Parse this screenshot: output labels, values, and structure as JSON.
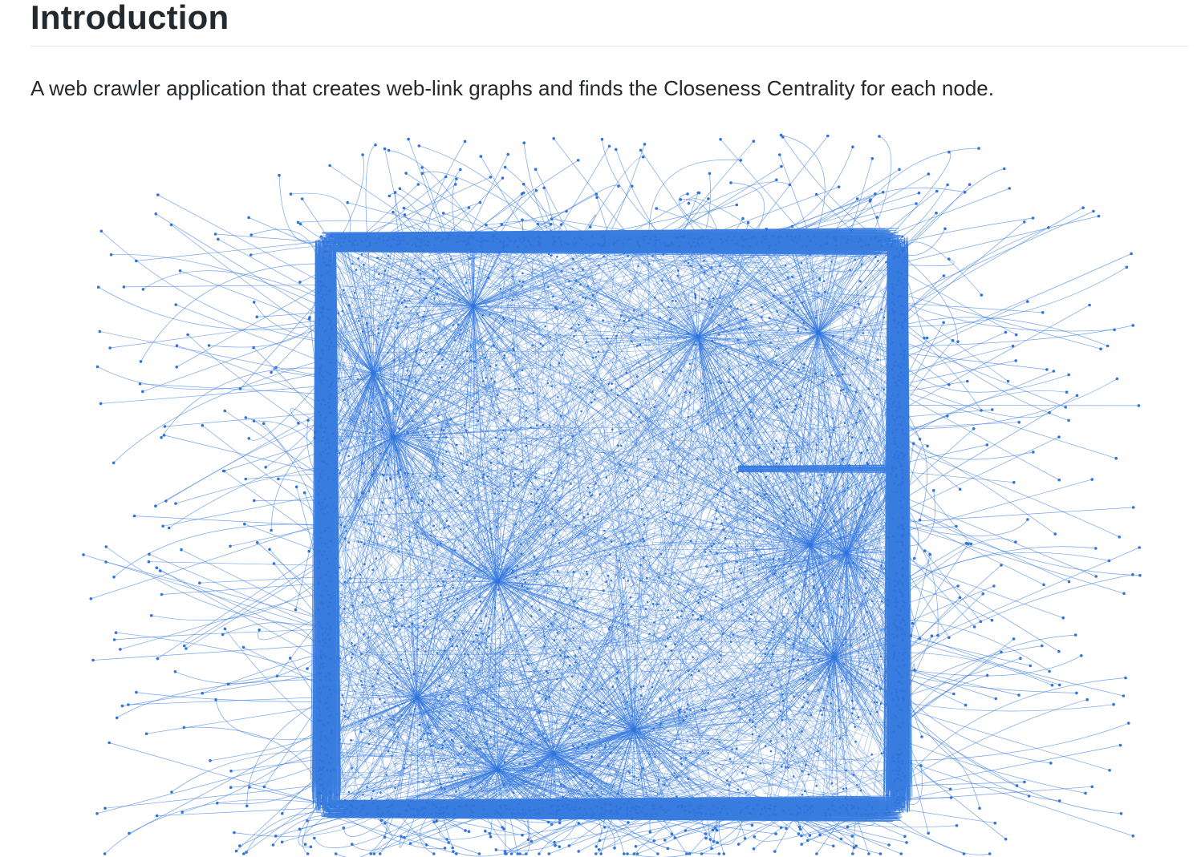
{
  "section": {
    "title": "Introduction",
    "description": "A web crawler application that creates web-link graphs and finds the Closeness Centrality for each node."
  },
  "figure": {
    "kind": "network-graph-image",
    "edge_color": "#3a7de0",
    "node_color": "#2f74dc"
  }
}
